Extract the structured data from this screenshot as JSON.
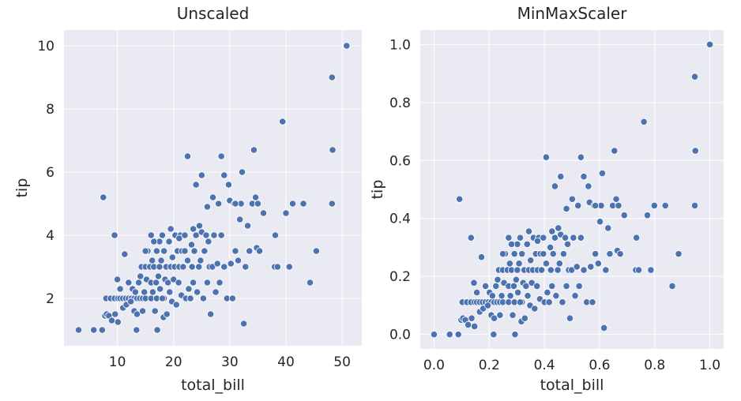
{
  "chart_data": [
    {
      "type": "scatter",
      "title": "Unscaled",
      "xlabel": "total_bill",
      "ylabel": "tip",
      "xlim": [
        0.5,
        53.5
      ],
      "ylim": [
        0.5,
        10.5
      ],
      "xticks": [
        10,
        20,
        30,
        40,
        50
      ],
      "yticks": [
        2,
        4,
        6,
        8,
        10
      ],
      "xtick_labels": [
        "10",
        "20",
        "30",
        "40",
        "50"
      ],
      "ytick_labels": [
        "2",
        "4",
        "6",
        "8",
        "10"
      ],
      "grid": true,
      "color": "#4c72b0",
      "background": "#eaeaf2",
      "points": [
        [
          3.1,
          1.0
        ],
        [
          5.8,
          1.0
        ],
        [
          7.3,
          1.0
        ],
        [
          7.5,
          5.2
        ],
        [
          7.8,
          1.45
        ],
        [
          8.1,
          1.5
        ],
        [
          8.5,
          1.45
        ],
        [
          9.0,
          1.3
        ],
        [
          9.6,
          1.5
        ],
        [
          10.1,
          1.25
        ],
        [
          8.0,
          2.0
        ],
        [
          8.8,
          2.0
        ],
        [
          9.5,
          2.0
        ],
        [
          10.1,
          2.0
        ],
        [
          10.5,
          2.0
        ],
        [
          11.0,
          2.0
        ],
        [
          11.5,
          2.0
        ],
        [
          12.0,
          2.0
        ],
        [
          12.5,
          2.0
        ],
        [
          13.0,
          2.0
        ],
        [
          13.5,
          2.0
        ],
        [
          14.0,
          2.0
        ],
        [
          14.5,
          2.0
        ],
        [
          15.0,
          2.0
        ],
        [
          16.0,
          2.0
        ],
        [
          17.0,
          2.0
        ],
        [
          18.3,
          2.0
        ],
        [
          9.5,
          4.0
        ],
        [
          10.0,
          2.6
        ],
        [
          10.5,
          2.3
        ],
        [
          11.0,
          1.7
        ],
        [
          11.3,
          3.4
        ],
        [
          11.6,
          1.8
        ],
        [
          12.0,
          2.5
        ],
        [
          12.4,
          1.9
        ],
        [
          12.7,
          2.3
        ],
        [
          13.0,
          1.6
        ],
        [
          13.2,
          2.2
        ],
        [
          13.4,
          1.0
        ],
        [
          13.5,
          1.5
        ],
        [
          13.8,
          2.5
        ],
        [
          14.1,
          2.7
        ],
        [
          14.3,
          3.0
        ],
        [
          14.5,
          1.6
        ],
        [
          14.8,
          2.2
        ],
        [
          15.0,
          3.0
        ],
        [
          15.2,
          2.6
        ],
        [
          15.4,
          3.5
        ],
        [
          15.8,
          3.0
        ],
        [
          16.0,
          2.5
        ],
        [
          16.2,
          3.2
        ],
        [
          16.3,
          2.2
        ],
        [
          16.5,
          3.0
        ],
        [
          16.7,
          1.6
        ],
        [
          16.9,
          2.5
        ],
        [
          17.0,
          3.5
        ],
        [
          17.1,
          1.0
        ],
        [
          17.3,
          2.7
        ],
        [
          17.5,
          3.0
        ],
        [
          17.6,
          2.3
        ],
        [
          17.8,
          3.2
        ],
        [
          18.0,
          2.0
        ],
        [
          18.2,
          1.4
        ],
        [
          18.3,
          3.5
        ],
        [
          18.5,
          2.6
        ],
        [
          18.7,
          3.0
        ],
        [
          18.8,
          1.5
        ],
        [
          19.0,
          2.5
        ],
        [
          19.2,
          3.8
        ],
        [
          19.3,
          2.2
        ],
        [
          19.5,
          3.0
        ],
        [
          19.7,
          1.9
        ],
        [
          19.8,
          3.3
        ],
        [
          20.0,
          2.6
        ],
        [
          20.2,
          3.0
        ],
        [
          20.3,
          4.0
        ],
        [
          20.5,
          1.8
        ],
        [
          20.7,
          3.5
        ],
        [
          20.9,
          2.5
        ],
        [
          21.0,
          3.0
        ],
        [
          21.2,
          4.0
        ],
        [
          21.4,
          2.1
        ],
        [
          21.5,
          3.5
        ],
        [
          21.7,
          3.0
        ],
        [
          22.0,
          3.5
        ],
        [
          22.2,
          2.0
        ],
        [
          22.5,
          3.2
        ],
        [
          22.7,
          2.3
        ],
        [
          23.0,
          2.0
        ],
        [
          23.2,
          3.7
        ],
        [
          23.3,
          3.0
        ],
        [
          23.5,
          2.5
        ],
        [
          23.7,
          3.5
        ],
        [
          24.0,
          4.0
        ],
        [
          24.2,
          2.2
        ],
        [
          24.5,
          3.0
        ],
        [
          24.6,
          4.3
        ],
        [
          24.8,
          3.2
        ],
        [
          25.0,
          4.1
        ],
        [
          25.3,
          2.0
        ],
        [
          25.5,
          3.5
        ],
        [
          25.8,
          4.0
        ],
        [
          26.0,
          2.5
        ],
        [
          26.2,
          3.8
        ],
        [
          26.4,
          3.0
        ],
        [
          26.6,
          1.5
        ],
        [
          26.9,
          3.0
        ],
        [
          27.2,
          4.0
        ],
        [
          27.5,
          2.2
        ],
        [
          27.8,
          3.1
        ],
        [
          28.0,
          5.0
        ],
        [
          28.2,
          2.5
        ],
        [
          28.5,
          4.0
        ],
        [
          29.0,
          3.0
        ],
        [
          29.5,
          2.0
        ],
        [
          30.0,
          5.1
        ],
        [
          30.2,
          3.1
        ],
        [
          30.5,
          2.0
        ],
        [
          30.8,
          5.0
        ],
        [
          31.0,
          3.5
        ],
        [
          31.5,
          3.2
        ],
        [
          31.8,
          4.5
        ],
        [
          32.0,
          5.0
        ],
        [
          32.2,
          6.0
        ],
        [
          32.5,
          1.2
        ],
        [
          32.8,
          3.0
        ],
        [
          33.2,
          4.3
        ],
        [
          33.5,
          3.5
        ],
        [
          34.0,
          5.0
        ],
        [
          34.3,
          6.7
        ],
        [
          34.6,
          5.2
        ],
        [
          34.8,
          3.6
        ],
        [
          35.0,
          5.0
        ],
        [
          35.3,
          3.5
        ],
        [
          36.0,
          4.7
        ],
        [
          22.5,
          6.5
        ],
        [
          24.0,
          5.6
        ],
        [
          25.0,
          5.9
        ],
        [
          26.0,
          4.9
        ],
        [
          27.0,
          5.2
        ],
        [
          28.5,
          6.5
        ],
        [
          29.0,
          5.9
        ],
        [
          29.8,
          5.6
        ],
        [
          31.0,
          5.0
        ],
        [
          38.0,
          3.0
        ],
        [
          38.1,
          4.0
        ],
        [
          38.5,
          3.0
        ],
        [
          39.4,
          7.6
        ],
        [
          40.0,
          4.7
        ],
        [
          40.6,
          3.0
        ],
        [
          41.2,
          5.0
        ],
        [
          43.1,
          5.0
        ],
        [
          44.3,
          2.5
        ],
        [
          45.4,
          3.5
        ],
        [
          48.2,
          9.0
        ],
        [
          48.3,
          6.7
        ],
        [
          48.2,
          5.0
        ],
        [
          50.8,
          10.0
        ],
        [
          16.0,
          4.0
        ],
        [
          17.5,
          3.8
        ],
        [
          18.0,
          4.0
        ],
        [
          19.5,
          4.2
        ],
        [
          21.0,
          3.9
        ],
        [
          22.0,
          4.0
        ],
        [
          23.5,
          4.2
        ],
        [
          15.0,
          3.5
        ],
        [
          16.5,
          3.8
        ]
      ]
    },
    {
      "type": "scatter",
      "title": "MinMaxScaler",
      "xlabel": "total_bill",
      "ylabel": "tip",
      "xlim": [
        -0.05,
        1.05
      ],
      "ylim": [
        -0.05,
        1.05
      ],
      "xticks": [
        0.0,
        0.2,
        0.4,
        0.6,
        0.8,
        1.0
      ],
      "yticks": [
        0.0,
        0.2,
        0.4,
        0.6,
        0.8,
        1.0
      ],
      "xtick_labels": [
        "0.0",
        "0.2",
        "0.4",
        "0.6",
        "0.8",
        "1.0"
      ],
      "ytick_labels": [
        "0.0",
        "0.2",
        "0.4",
        "0.6",
        "0.8",
        "1.0"
      ],
      "grid": true,
      "color": "#4c72b0",
      "background": "#eaeaf2",
      "transform": "minmax of panel 1 points"
    }
  ]
}
